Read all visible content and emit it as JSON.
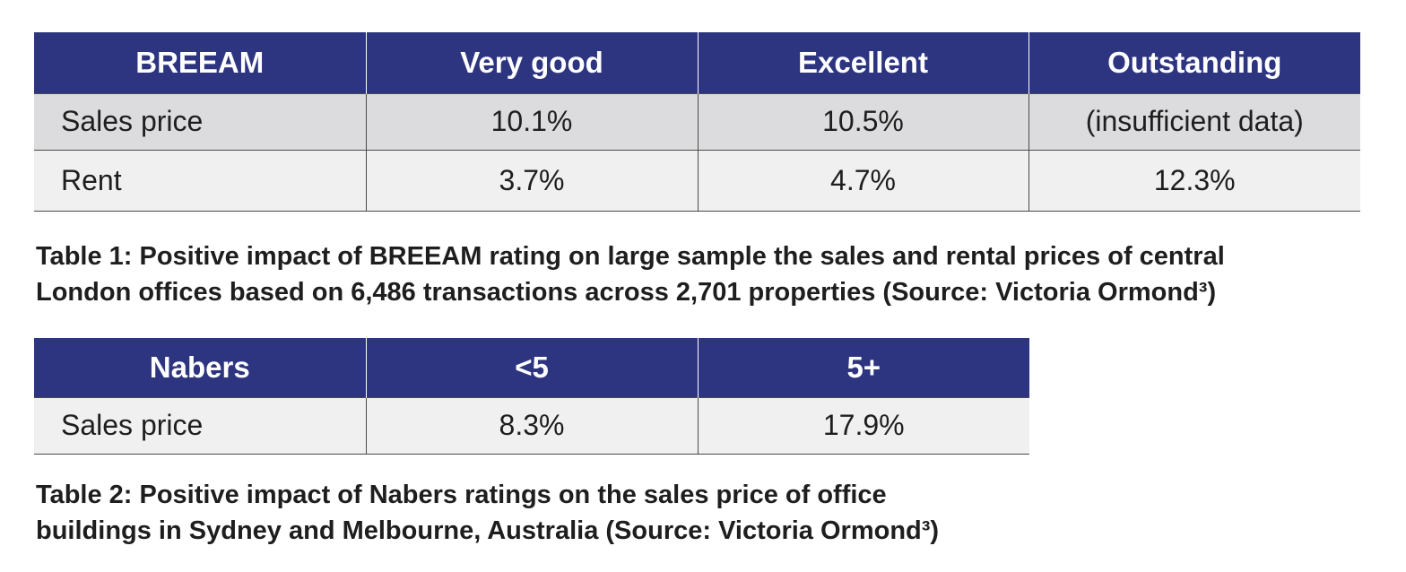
{
  "table1": {
    "headers": [
      "BREEAM",
      "Very good",
      "Excellent",
      "Outstanding"
    ],
    "rows": [
      [
        "Sales price",
        "10.1%",
        "10.5%",
        "(insufficient data)"
      ],
      [
        "Rent",
        "3.7%",
        "4.7%",
        "12.3%"
      ]
    ],
    "caption_line1": "Table 1: Positive impact of BREEAM rating on large sample the sales and rental prices of central",
    "caption_line2": "London offices based on 6,486 transactions across 2,701 properties (Source: Victoria Ormond³)"
  },
  "table2": {
    "headers": [
      "Nabers",
      "<5",
      "5+"
    ],
    "rows": [
      [
        "Sales price",
        "8.3%",
        "17.9%"
      ]
    ],
    "caption_line1": "Table 2: Positive impact of Nabers ratings on the sales price of office",
    "caption_line2": "buildings in Sydney and Melbourne, Australia (Source: Victoria Ormond³)"
  },
  "colors": {
    "header_bg": "#2d3580",
    "row_shaded": "#dcdcde",
    "row_light": "#f0f0f1"
  }
}
